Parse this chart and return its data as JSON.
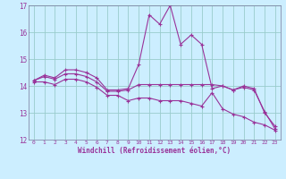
{
  "title": "",
  "xlabel": "Windchill (Refroidissement éolien,°C)",
  "bg_color": "#cceeff",
  "line_color": "#993399",
  "grid_color": "#99cccc",
  "xmin": -0.5,
  "xmax": 23.5,
  "ymin": 12,
  "ymax": 17,
  "yticks": [
    12,
    13,
    14,
    15,
    16,
    17
  ],
  "xticks": [
    0,
    1,
    2,
    3,
    4,
    5,
    6,
    7,
    8,
    9,
    10,
    11,
    12,
    13,
    14,
    15,
    16,
    17,
    18,
    19,
    20,
    21,
    22,
    23
  ],
  "line1": [
    14.2,
    14.4,
    14.3,
    14.6,
    14.6,
    14.5,
    14.3,
    13.85,
    13.85,
    13.9,
    14.8,
    16.65,
    16.3,
    17.0,
    15.55,
    15.9,
    15.55,
    13.9,
    14.0,
    13.85,
    14.0,
    13.9,
    13.0,
    12.5
  ],
  "line2": [
    14.2,
    14.35,
    14.25,
    14.45,
    14.45,
    14.35,
    14.15,
    13.8,
    13.8,
    13.85,
    14.05,
    14.05,
    14.05,
    14.05,
    14.05,
    14.05,
    14.05,
    14.05,
    14.0,
    13.85,
    13.95,
    13.85,
    13.05,
    12.4
  ],
  "line3": [
    14.15,
    14.15,
    14.05,
    14.25,
    14.25,
    14.15,
    13.95,
    13.65,
    13.65,
    13.45,
    13.55,
    13.55,
    13.45,
    13.45,
    13.45,
    13.35,
    13.25,
    13.75,
    13.15,
    12.95,
    12.85,
    12.65,
    12.55,
    12.35
  ]
}
